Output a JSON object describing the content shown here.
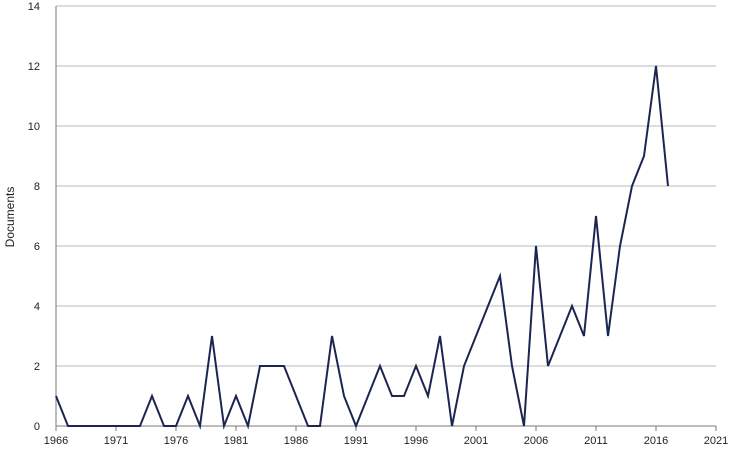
{
  "chart_data": {
    "type": "line",
    "title": "",
    "xlabel": "",
    "ylabel": "Documents",
    "xlim": [
      1966,
      2021
    ],
    "ylim": [
      0,
      14
    ],
    "x_ticks": [
      1966,
      1971,
      1976,
      1981,
      1986,
      1991,
      1996,
      2001,
      2006,
      2011,
      2016,
      2021
    ],
    "y_ticks": [
      0,
      2,
      4,
      6,
      8,
      10,
      12,
      14
    ],
    "grid": "horizontal",
    "legend": "none",
    "series": [
      {
        "color": "#1c2552",
        "x": [
          1966,
          1967,
          1968,
          1969,
          1970,
          1971,
          1972,
          1973,
          1974,
          1975,
          1976,
          1977,
          1978,
          1979,
          1980,
          1981,
          1982,
          1983,
          1984,
          1985,
          1986,
          1987,
          1988,
          1989,
          1990,
          1991,
          1992,
          1993,
          1994,
          1995,
          1996,
          1997,
          1998,
          1999,
          2000,
          2001,
          2002,
          2003,
          2004,
          2005,
          2006,
          2007,
          2008,
          2009,
          2010,
          2011,
          2012,
          2013,
          2014,
          2015,
          2016,
          2017
        ],
        "y": [
          1,
          0,
          0,
          0,
          0,
          0,
          0,
          0,
          1,
          0,
          0,
          1,
          0,
          3,
          0,
          1,
          0,
          2,
          2,
          2,
          1,
          0,
          0,
          3,
          1,
          0,
          1,
          2,
          1,
          1,
          2,
          1,
          3,
          0,
          2,
          3,
          4,
          5,
          2,
          0,
          6,
          2,
          3,
          4,
          3,
          7,
          3,
          6,
          8,
          9,
          12,
          8
        ]
      }
    ]
  },
  "colors": {
    "line": "#1c2552",
    "grid": "#b8b8b8",
    "axis": "#7a7a7a",
    "text": "#222222"
  }
}
